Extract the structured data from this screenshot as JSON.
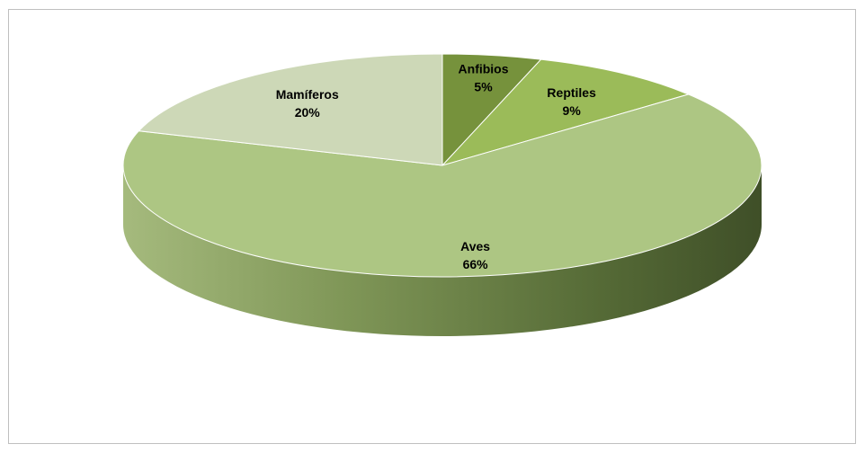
{
  "chart_data": {
    "type": "pie",
    "title": "",
    "slices": [
      {
        "category": "Anfibios",
        "value": 5,
        "label": "5%"
      },
      {
        "category": "Reptiles",
        "value": 9,
        "label": "9%"
      },
      {
        "category": "Aves",
        "value": 66,
        "label": "66%"
      },
      {
        "category": "Mamíferos",
        "value": 20,
        "label": "20%"
      }
    ],
    "colors": [
      "#76923c",
      "#9bbb59",
      "#adc683",
      "#cdd8b7"
    ],
    "side_colors": [
      "#5b7030",
      "#6f8a3c",
      "#7a9151",
      "#8e9d76"
    ],
    "style": "3d"
  }
}
